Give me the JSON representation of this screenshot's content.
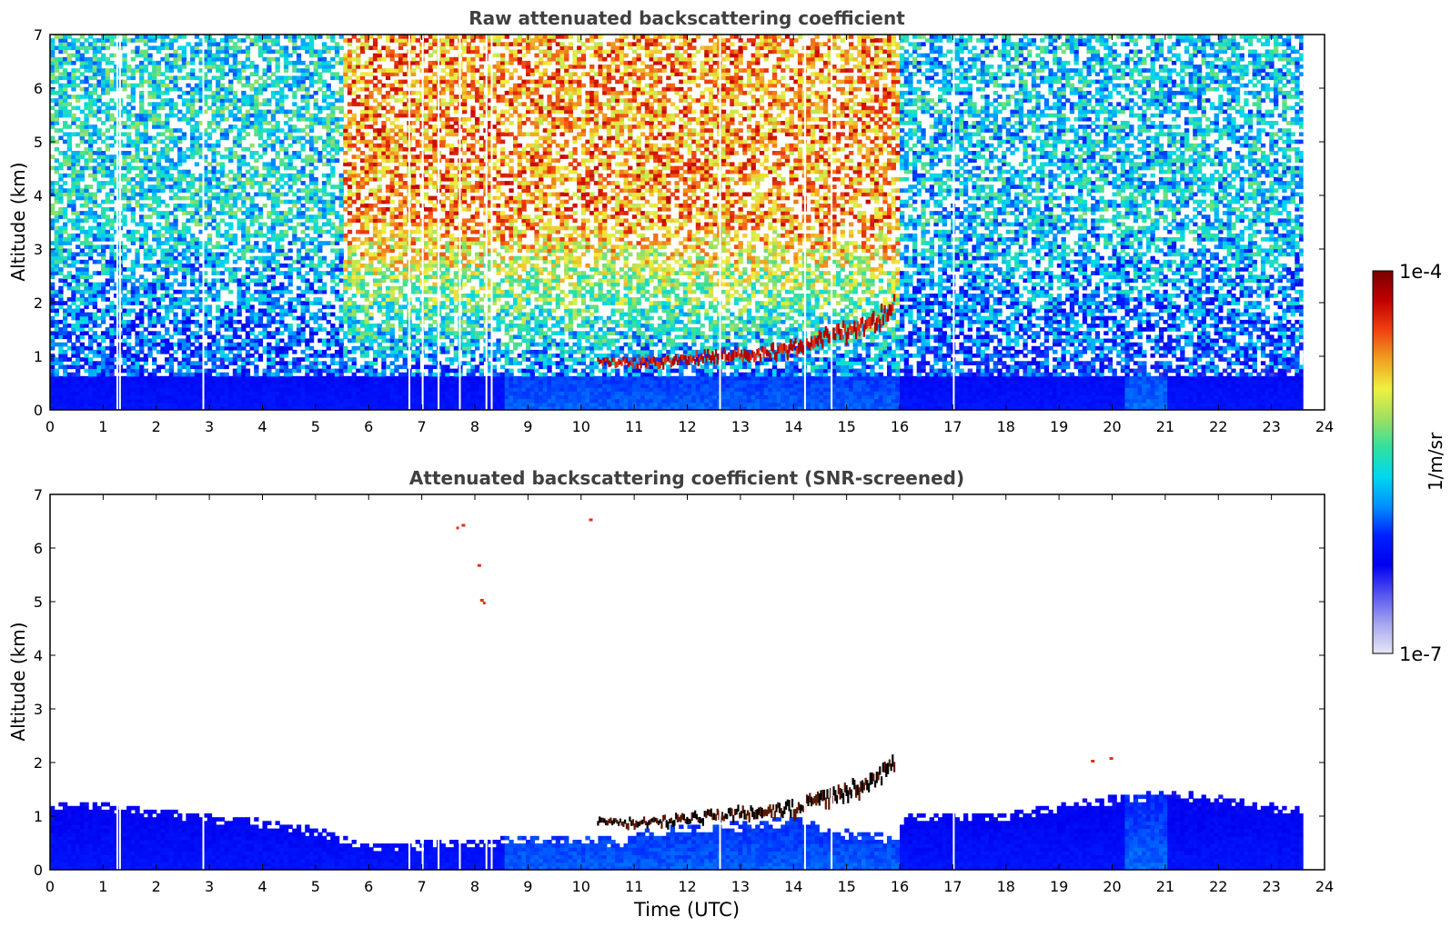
{
  "chart_data": [
    {
      "type": "heatmap",
      "title": "Raw attenuated backscattering coefficient",
      "xlabel": "",
      "ylabel": "Altitude (km)",
      "xlim": [
        0,
        24
      ],
      "ylim": [
        0,
        7
      ],
      "x_ticks": [
        "0",
        "1",
        "2",
        "3",
        "4",
        "5",
        "6",
        "7",
        "8",
        "9",
        "10",
        "11",
        "12",
        "13",
        "14",
        "15",
        "16",
        "17",
        "18",
        "19",
        "20",
        "21",
        "22",
        "23",
        "24"
      ],
      "y_ticks": [
        "0",
        "1",
        "2",
        "3",
        "4",
        "5",
        "6",
        "7"
      ],
      "data_end_hour": 23.6,
      "gaps_hours": [
        1.25,
        1.3,
        2.87,
        6.75,
        7.0,
        7.3,
        7.7,
        8.2,
        8.3,
        12.6,
        14.2,
        14.7,
        17.0
      ],
      "background_bands": [
        {
          "t0": 0.0,
          "t1": 5.5,
          "level_high_alt": 0.48,
          "note": "noise, green-cyan at top"
        },
        {
          "t0": 5.5,
          "t1": 16.0,
          "level_high_alt": 0.78,
          "note": "solar background, yellow-red"
        },
        {
          "t0": 16.0,
          "t1": 23.6,
          "level_high_alt": 0.45,
          "note": "noise, green-cyan at top"
        }
      ],
      "boundary_layer": {
        "top_km_start": 0.6,
        "top_km_end": 0.6
      },
      "cloud_layer": [
        {
          "t": 10.3,
          "z": 0.88
        },
        {
          "t": 11.0,
          "z": 0.86
        },
        {
          "t": 11.5,
          "z": 0.88
        },
        {
          "t": 12.0,
          "z": 0.93
        },
        {
          "t": 12.5,
          "z": 0.98
        },
        {
          "t": 13.0,
          "z": 1.03
        },
        {
          "t": 13.5,
          "z": 1.05
        },
        {
          "t": 14.0,
          "z": 1.12
        },
        {
          "t": 14.5,
          "z": 1.3
        },
        {
          "t": 15.0,
          "z": 1.45
        },
        {
          "t": 15.5,
          "z": 1.6
        },
        {
          "t": 15.9,
          "z": 1.95
        }
      ]
    },
    {
      "type": "heatmap",
      "title": "Attenuated backscattering coefficient (SNR-screened)",
      "xlabel": "Time (UTC)",
      "ylabel": "Altitude (km)",
      "xlim": [
        0,
        24
      ],
      "ylim": [
        0,
        7
      ],
      "x_ticks": [
        "0",
        "1",
        "2",
        "3",
        "4",
        "5",
        "6",
        "7",
        "8",
        "9",
        "10",
        "11",
        "12",
        "13",
        "14",
        "15",
        "16",
        "17",
        "18",
        "19",
        "20",
        "21",
        "22",
        "23",
        "24"
      ],
      "y_ticks": [
        "0",
        "1",
        "2",
        "3",
        "4",
        "5",
        "6",
        "7"
      ],
      "data_end_hour": 23.6,
      "boundary_layer_top_km": [
        {
          "t": 0,
          "z": 1.25
        },
        {
          "t": 1,
          "z": 1.2
        },
        {
          "t": 2,
          "z": 1.1
        },
        {
          "t": 3,
          "z": 1.0
        },
        {
          "t": 4,
          "z": 0.9
        },
        {
          "t": 5,
          "z": 0.75
        },
        {
          "t": 5.7,
          "z": 0.55
        },
        {
          "t": 6.2,
          "z": 0.45
        },
        {
          "t": 7,
          "z": 0.5
        },
        {
          "t": 8,
          "z": 0.55
        },
        {
          "t": 9,
          "z": 0.6
        },
        {
          "t": 10,
          "z": 0.6
        },
        {
          "t": 10.8,
          "z": 0.55
        },
        {
          "t": 11.2,
          "z": 0.75
        },
        {
          "t": 12,
          "z": 0.8
        },
        {
          "t": 13,
          "z": 0.85
        },
        {
          "t": 14,
          "z": 0.95
        },
        {
          "t": 15,
          "z": 0.7
        },
        {
          "t": 15.9,
          "z": 0.6
        },
        {
          "t": 16.1,
          "z": 1.0
        },
        {
          "t": 17,
          "z": 1.0
        },
        {
          "t": 18,
          "z": 1.05
        },
        {
          "t": 19,
          "z": 1.2
        },
        {
          "t": 20,
          "z": 1.35
        },
        {
          "t": 21,
          "z": 1.45
        },
        {
          "t": 22,
          "z": 1.35
        },
        {
          "t": 23,
          "z": 1.2
        },
        {
          "t": 23.6,
          "z": 1.1
        }
      ],
      "isolated_echoes": [
        {
          "t": 7.65,
          "z": 6.4
        },
        {
          "t": 7.75,
          "z": 6.45
        },
        {
          "t": 8.05,
          "z": 5.7
        },
        {
          "t": 8.1,
          "z": 5.05
        },
        {
          "t": 8.15,
          "z": 5.0
        },
        {
          "t": 10.15,
          "z": 6.55
        },
        {
          "t": 19.6,
          "z": 2.05
        },
        {
          "t": 19.95,
          "z": 2.1
        }
      ]
    }
  ],
  "colorbar": {
    "label": "1/m/sr",
    "max_label": "1e-4",
    "min_label": "1e-7",
    "stops": [
      "#e6e6f7",
      "#a6a6f0",
      "#5555f0",
      "#0000f0",
      "#0020ff",
      "#0090ff",
      "#00d8f0",
      "#30e0a0",
      "#a0e060",
      "#f0f040",
      "#f0a020",
      "#f04010",
      "#c00000",
      "#7a0000"
    ]
  }
}
